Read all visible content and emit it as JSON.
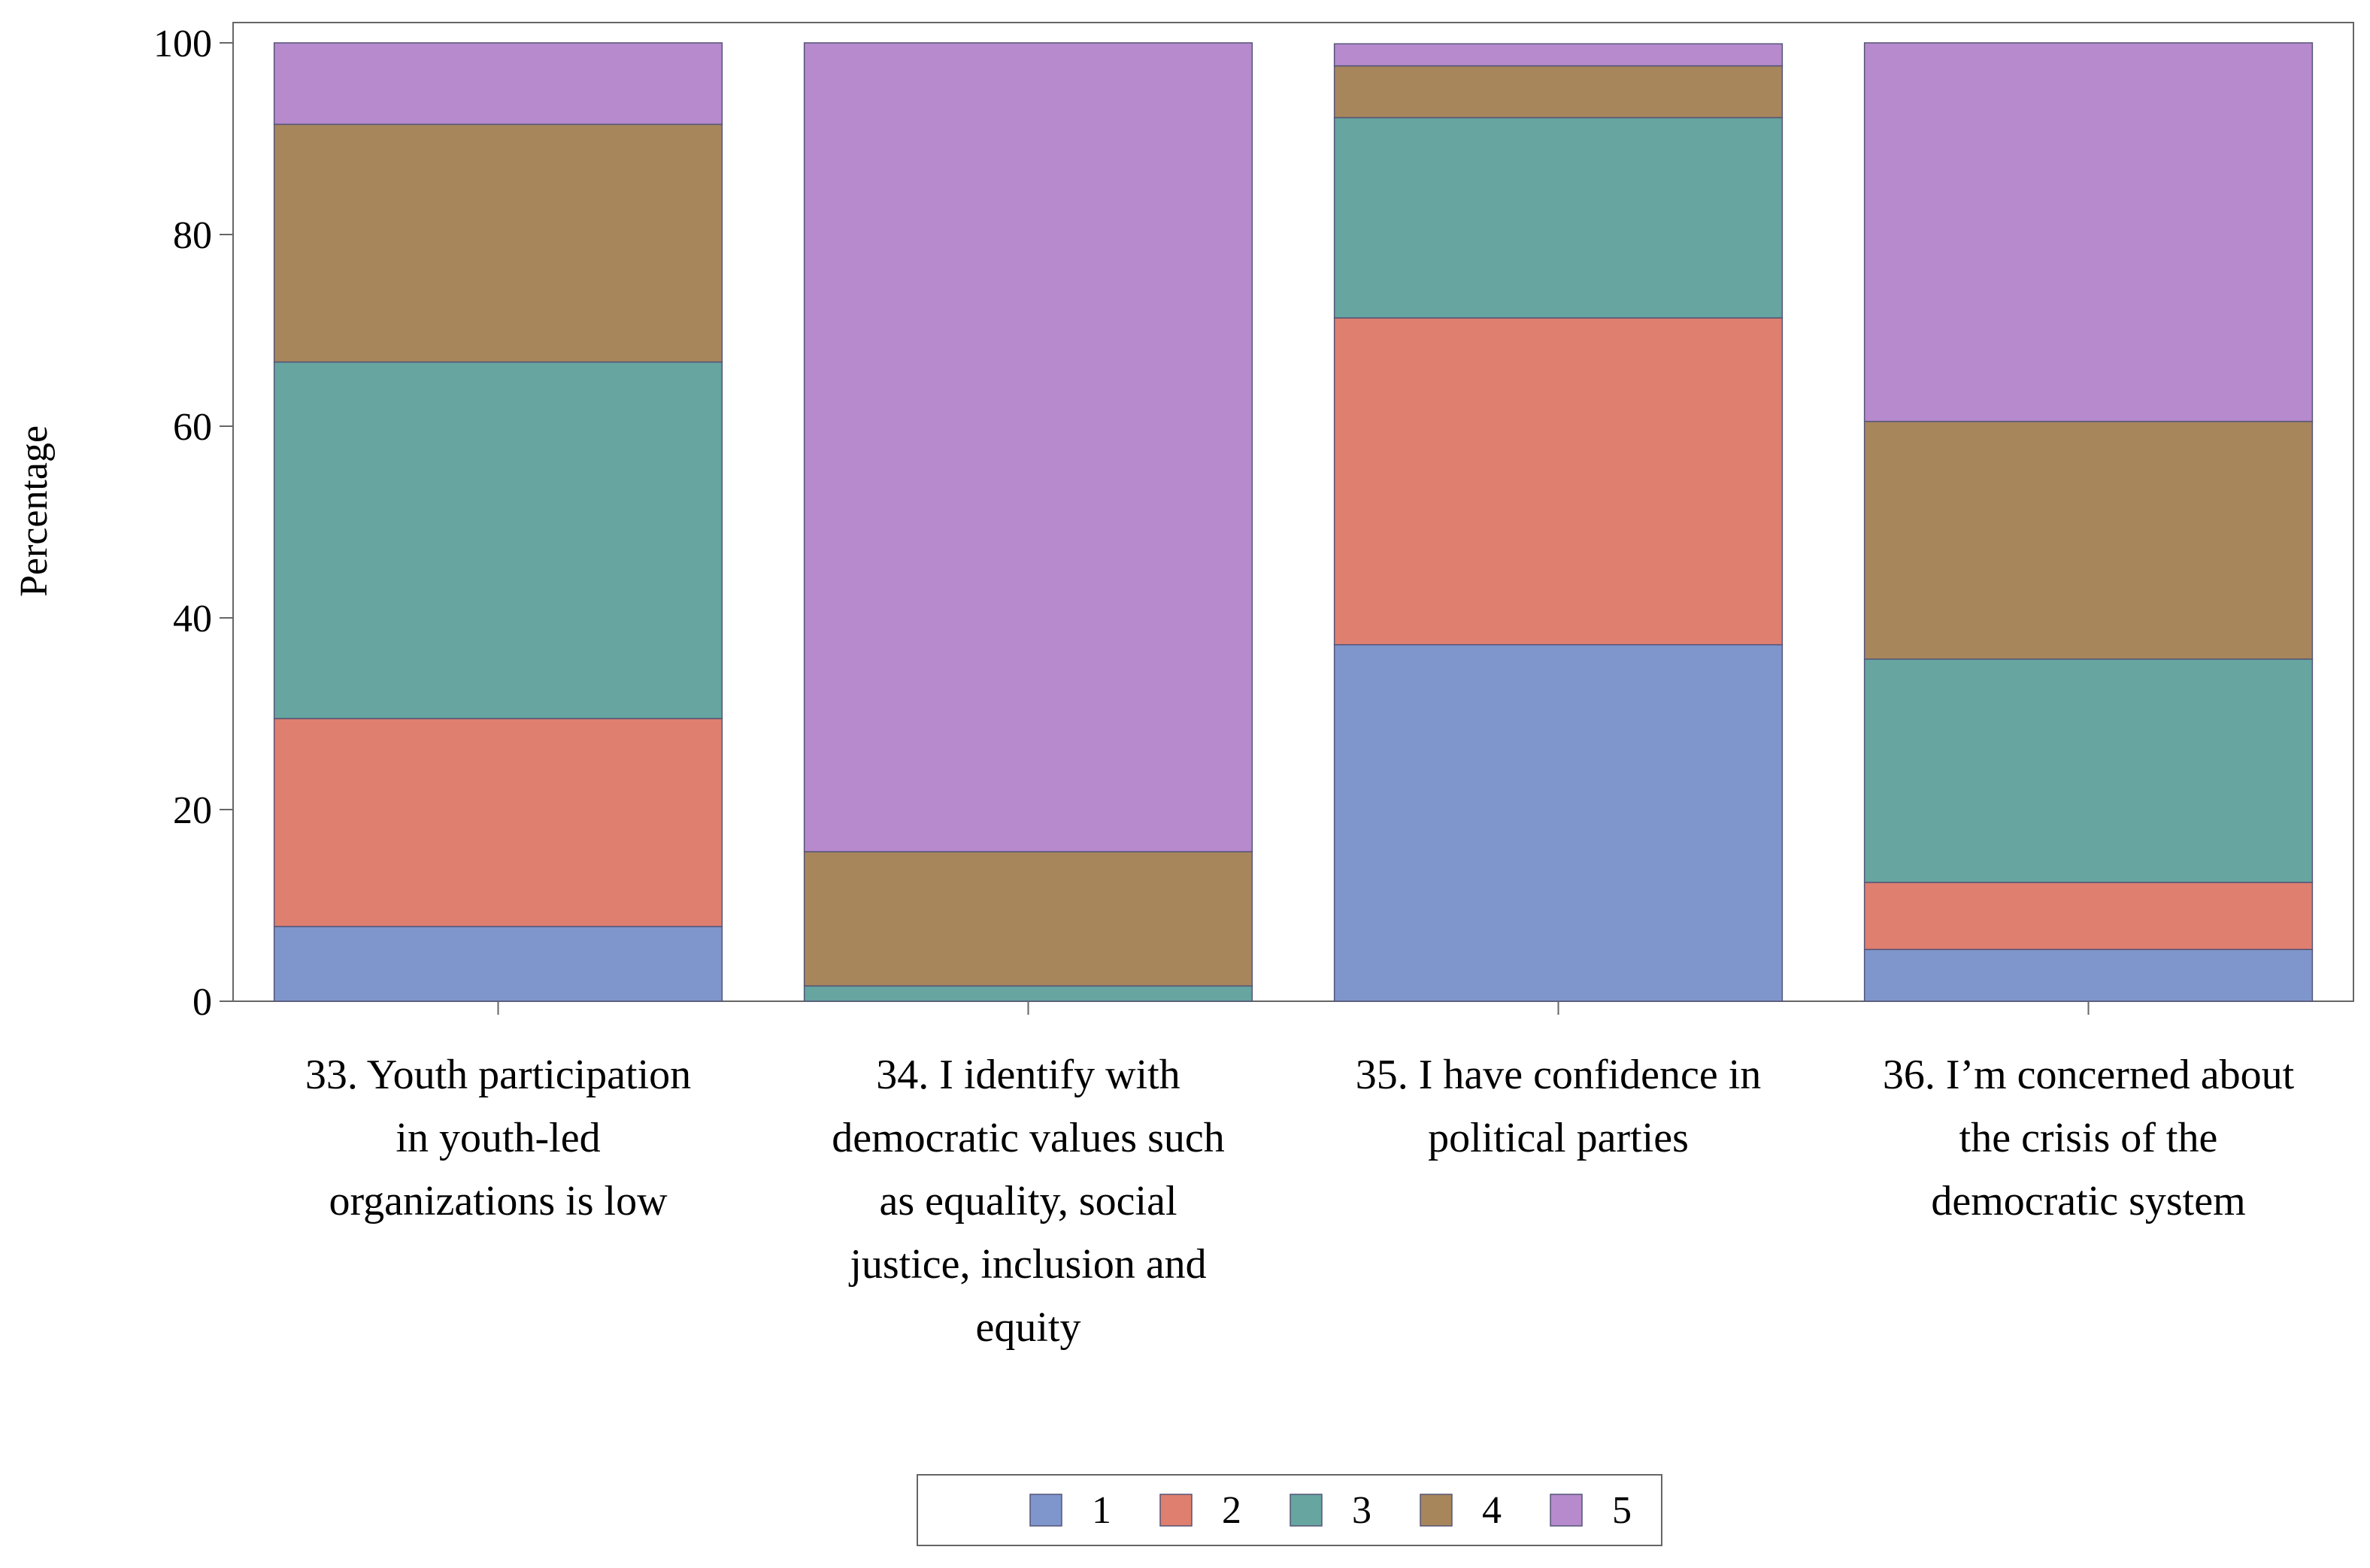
{
  "chart_data": {
    "type": "bar",
    "stacked": true,
    "title": "",
    "xlabel": "",
    "ylabel": "Percentage",
    "ylim": [
      0,
      100
    ],
    "yticks": [
      "0",
      "20",
      "40",
      "60",
      "80",
      "100"
    ],
    "categories": [
      {
        "label": "33. Youth participation in youth-led organizations is low",
        "lines": [
          "33. Youth participation",
          "in youth-led",
          "organizations is low"
        ]
      },
      {
        "label": "34. I identify with democratic values such as equality, social justice, inclusion and equity",
        "lines": [
          "34. I identify with",
          "democratic values such",
          "as equality, social",
          "justice, inclusion and",
          "equity"
        ]
      },
      {
        "label": "35. I have confidence in political parties",
        "lines": [
          "35. I have confidence in",
          "political parties"
        ]
      },
      {
        "label": "36. I’m concerned about the crisis of the democratic system",
        "lines": [
          "36. I’m concerned about",
          "the crisis of the",
          "democratic system"
        ]
      }
    ],
    "series": [
      {
        "name": "1",
        "color": "#7E96CC",
        "values": [
          7.8,
          0,
          37.2,
          5.4
        ]
      },
      {
        "name": "2",
        "color": "#DF7F6F",
        "values": [
          21.7,
          0,
          34.1,
          7.0
        ]
      },
      {
        "name": "3",
        "color": "#66A5A0",
        "values": [
          37.2,
          1.6,
          20.9,
          23.3
        ]
      },
      {
        "name": "4",
        "color": "#A8865C",
        "values": [
          24.8,
          14.0,
          5.4,
          24.8
        ]
      },
      {
        "name": "5",
        "color": "#B68ACD",
        "values": [
          8.5,
          84.4,
          2.3,
          39.5
        ]
      }
    ],
    "legend": {
      "placement": "bottom-center"
    }
  }
}
